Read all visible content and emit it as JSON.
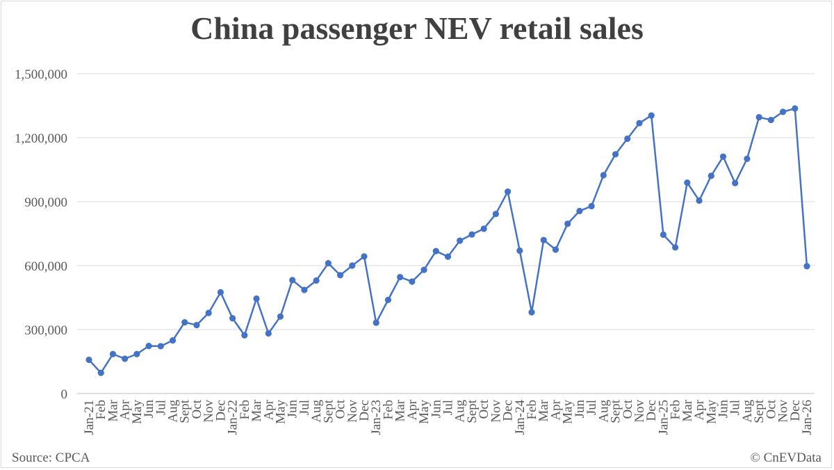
{
  "chart_data": {
    "type": "line",
    "title": "China passenger NEV retail sales",
    "xlabel": "",
    "ylabel": "",
    "ylim": [
      0,
      1500000
    ],
    "yticks": [
      0,
      300000,
      600000,
      900000,
      1200000,
      1500000
    ],
    "ytick_labels": [
      "0",
      "300,000",
      "600,000",
      "900,000",
      "1,200,000",
      "1,500,000"
    ],
    "grid": true,
    "legend": "none",
    "line_color": "#4472c4",
    "categories": [
      "Jan-21",
      "Feb",
      "Mar",
      "Apr",
      "May",
      "Jun",
      "Jul",
      "Aug",
      "Sept",
      "Oct",
      "Nov",
      "Dec",
      "Jan-22",
      "Feb",
      "Mar",
      "Apr",
      "May",
      "Jun",
      "Jul",
      "Aug",
      "Sept",
      "Oct",
      "Nov",
      "Dec",
      "Jan-23",
      "Feb",
      "Mar",
      "Apr",
      "May",
      "Jun",
      "Jul",
      "Aug",
      "Sept",
      "Oct",
      "Nov",
      "Dec",
      "Jan-24",
      "Feb",
      "Mar",
      "Apr",
      "May",
      "Jun",
      "Jul",
      "Aug",
      "Sept",
      "Oct",
      "Nov",
      "Dec",
      "Jan-25",
      "Feb",
      "Mar",
      "Apr",
      "May",
      "Jun",
      "Jul",
      "Aug",
      "Sept",
      "Oct",
      "Nov",
      "Dec",
      "Jan-26"
    ],
    "series": [
      {
        "values": [
          158000,
          97000,
          185000,
          163000,
          185000,
          223000,
          222000,
          249000,
          334000,
          321000,
          378000,
          475000,
          353000,
          273000,
          445000,
          282000,
          361000,
          532000,
          486000,
          530000,
          611000,
          555000,
          600000,
          643000,
          332000,
          439000,
          546000,
          525000,
          580000,
          668000,
          642000,
          717000,
          746000,
          773000,
          842000,
          947000,
          670000,
          381000,
          720000,
          675000,
          796000,
          856000,
          879000,
          1024000,
          1122000,
          1195000,
          1268000,
          1304000,
          745000,
          685000,
          989000,
          905000,
          1021000,
          1111000,
          987000,
          1101000,
          1296000,
          1283000,
          1321000,
          1337000,
          597000
        ]
      }
    ]
  },
  "footer": {
    "source": "Source: CPCA",
    "credit": "© CnEVData"
  }
}
